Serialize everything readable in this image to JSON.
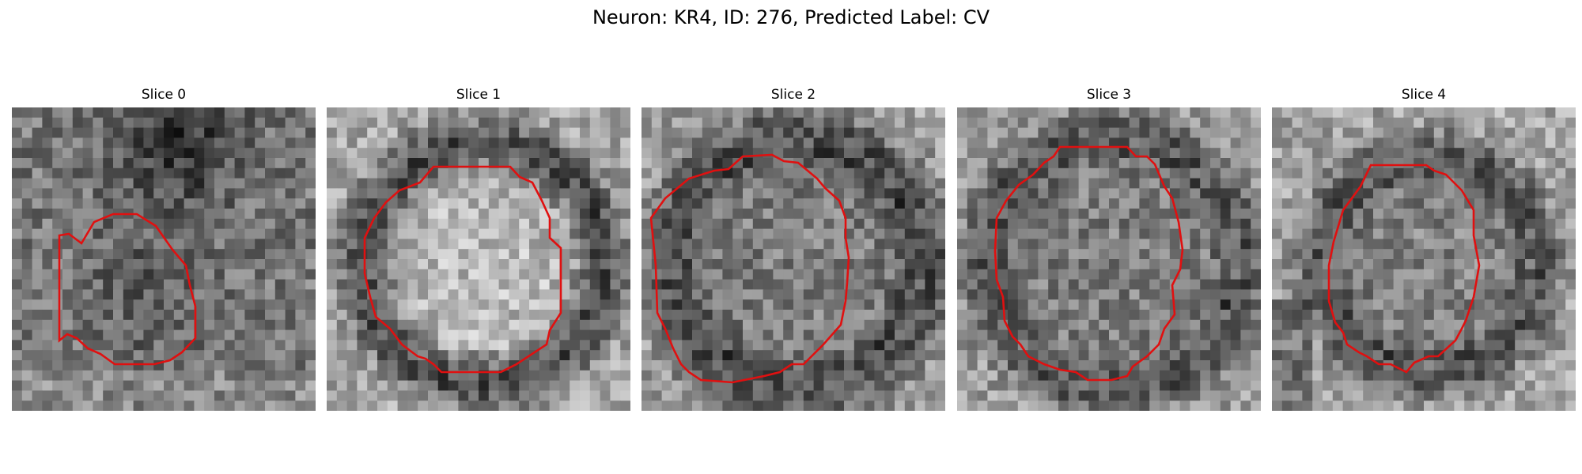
{
  "figure": {
    "title": "Neuron: KR4, ID: 276, Predicted Label: CV",
    "contour_color": "#e01010"
  },
  "panels": [
    {
      "title": "Slice 0"
    },
    {
      "title": "Slice 1"
    },
    {
      "title": "Slice 2"
    },
    {
      "title": "Slice 3"
    },
    {
      "title": "Slice 4"
    }
  ]
}
